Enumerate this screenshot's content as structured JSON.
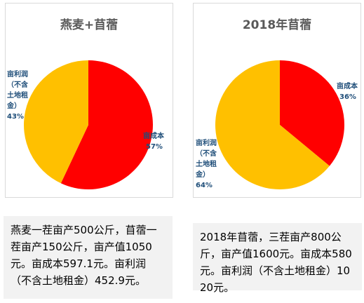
{
  "chart_data": [
    {
      "type": "pie",
      "title": "燕麦+苜蓿",
      "slices": [
        {
          "label_lines": [
            "亩成本",
            "57%"
          ],
          "value": 57,
          "color": "#ff0000"
        },
        {
          "label_lines": [
            "亩利润",
            "（不含",
            "土地租",
            "金）",
            "43%"
          ],
          "value": 43,
          "color": "#ffc000"
        }
      ]
    },
    {
      "type": "pie",
      "title": "2018年苜蓿",
      "slices": [
        {
          "label_lines": [
            "亩成本",
            "36%"
          ],
          "value": 36,
          "color": "#ff0000"
        },
        {
          "label_lines": [
            "亩利润",
            "（不含",
            "土地租",
            "金）",
            "64%"
          ],
          "value": 64,
          "color": "#ffc000"
        }
      ]
    }
  ],
  "notes": {
    "left": "燕麦一茬亩产500公斤，苜蓿一茬亩产150公斤，亩产值1050元。亩成本597.1元。亩利润（不含土地租金）452.9元。",
    "right": "2018年苜蓿，三茬亩产800公斤，亩产值1600元。亩成本580元。亩利润（不含土地租金）1020元。"
  }
}
